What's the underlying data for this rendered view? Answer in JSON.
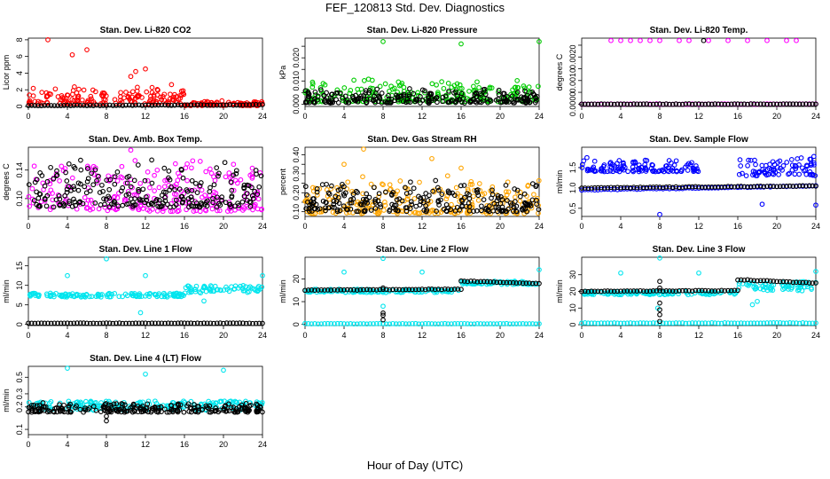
{
  "title": "FEF_120813  Std. Dev. Diagnostics",
  "xlabel": "Hour of Day (UTC)",
  "colors": {
    "black": "#000000",
    "red": "#ff0000",
    "green": "#00cc00",
    "magenta": "#ff00ff",
    "orange": "#ffa500",
    "blue": "#0000ff",
    "cyan": "#00e5ee"
  },
  "chart_data": [
    {
      "type": "scatter",
      "title": "Stan. Dev. Li-820 CO2",
      "ylabel": "Licor ppm",
      "xlim": [
        0,
        24
      ],
      "xticks": [
        0,
        4,
        8,
        12,
        16,
        20,
        24
      ],
      "ylim": [
        0,
        8.2
      ],
      "yticks": [
        0,
        2,
        4,
        6,
        8
      ],
      "ytick_labels": [
        "0",
        "2",
        "4",
        "6",
        "8"
      ],
      "series": [
        {
          "color": "red",
          "pattern": "cloud",
          "segments": [
            {
              "x": [
                0,
                16
              ],
              "y": [
                0.3,
                2.8
              ]
            },
            {
              "x": [
                16,
                24
              ],
              "y": [
                0.1,
                0.7
              ]
            }
          ],
          "outliers": [
            {
              "x": 2,
              "y": 8
            },
            {
              "x": 4.5,
              "y": 6.2
            },
            {
              "x": 6,
              "y": 6.8
            },
            {
              "x": 11,
              "y": 4.2
            },
            {
              "x": 12,
              "y": 4.5
            },
            {
              "x": 10.5,
              "y": 3.6
            }
          ]
        },
        {
          "color": "black",
          "pattern": "line",
          "segments": [
            {
              "x": [
                0,
                24
              ],
              "y": [
                0.1,
                0.2
              ]
            }
          ]
        }
      ]
    },
    {
      "type": "scatter",
      "title": "Stan. Dev. Li-820 Pressure",
      "ylabel": "kPa",
      "xlim": [
        0,
        24
      ],
      "xticks": [
        0,
        4,
        8,
        12,
        16,
        20,
        24
      ],
      "ylim": [
        -0.001,
        0.0285
      ],
      "yticks": [
        0,
        0.005,
        0.01,
        0.015,
        0.02,
        0.025
      ],
      "ytick_labels": [
        "0.000",
        "",
        "0.010",
        "",
        "0.020",
        ""
      ],
      "series": [
        {
          "color": "green",
          "pattern": "cloud",
          "segments": [
            {
              "x": [
                0,
                24
              ],
              "y": [
                0.001,
                0.011
              ]
            }
          ],
          "outliers": [
            {
              "x": 8,
              "y": 0.027
            },
            {
              "x": 16,
              "y": 0.026
            },
            {
              "x": 24,
              "y": 0.027
            }
          ]
        },
        {
          "color": "black",
          "pattern": "cloud",
          "segments": [
            {
              "x": [
                0,
                24
              ],
              "y": [
                0.0005,
                0.007
              ]
            }
          ]
        }
      ]
    },
    {
      "type": "scatter",
      "title": "Stan. Dev. Li-820 Temp.",
      "ylabel": "degrees C",
      "xlim": [
        0,
        24
      ],
      "xticks": [
        0,
        4,
        8,
        12,
        16,
        20,
        24
      ],
      "ylim": [
        -0.0001,
        0.0028
      ],
      "yticks": [
        0,
        0.0005,
        0.001,
        0.0015,
        0.002,
        0.0025
      ],
      "ytick_labels": [
        "0.0000",
        "",
        "0.0010",
        "",
        "0.0020",
        ""
      ],
      "series": [
        {
          "color": "magenta",
          "pattern": "line",
          "segments": [
            {
              "x": [
                0,
                24
              ],
              "y": [
                0,
                0
              ]
            }
          ],
          "outliers": [
            {
              "x": 3,
              "y": 0.0027
            },
            {
              "x": 4,
              "y": 0.0027
            },
            {
              "x": 5,
              "y": 0.0027
            },
            {
              "x": 6,
              "y": 0.0027
            },
            {
              "x": 7,
              "y": 0.0027
            },
            {
              "x": 8,
              "y": 0.0027
            },
            {
              "x": 10,
              "y": 0.0027
            },
            {
              "x": 11,
              "y": 0.0027
            },
            {
              "x": 13,
              "y": 0.0027
            },
            {
              "x": 15,
              "y": 0.0027
            },
            {
              "x": 17,
              "y": 0.0027
            },
            {
              "x": 19,
              "y": 0.0027
            },
            {
              "x": 21,
              "y": 0.0027
            },
            {
              "x": 22,
              "y": 0.0027
            }
          ]
        },
        {
          "color": "black",
          "pattern": "line",
          "segments": [
            {
              "x": [
                0,
                24
              ],
              "y": [
                0,
                0
              ]
            }
          ],
          "outliers": [
            {
              "x": 12.5,
              "y": 0.0027
            }
          ]
        }
      ]
    },
    {
      "type": "scatter",
      "title": "Stan. Dev. Amb. Box Temp.",
      "ylabel": "degrees C",
      "xlim": [
        0,
        24
      ],
      "xticks": [
        0,
        4,
        8,
        12,
        16,
        20,
        24
      ],
      "ylim": [
        0.075,
        0.172
      ],
      "yticks": [
        0.1,
        0.14
      ],
      "ytick_labels": [
        "0.10",
        "0.14"
      ],
      "series": [
        {
          "color": "magenta",
          "pattern": "cloud",
          "segments": [
            {
              "x": [
                0,
                24
              ],
              "y": [
                0.082,
                0.16
              ]
            }
          ],
          "outliers": [
            {
              "x": 10.5,
              "y": 0.168
            }
          ]
        },
        {
          "color": "black",
          "pattern": "cloud",
          "segments": [
            {
              "x": [
                0,
                24
              ],
              "y": [
                0.088,
                0.158
              ]
            }
          ]
        }
      ]
    },
    {
      "type": "scatter",
      "title": "Stan. Dev. Gas Stream RH",
      "ylabel": "percent",
      "xlim": [
        0,
        24
      ],
      "xticks": [
        0,
        4,
        8,
        12,
        16,
        20,
        24
      ],
      "ylim": [
        0.075,
        0.44
      ],
      "yticks": [
        0.1,
        0.15,
        0.2,
        0.25,
        0.3,
        0.35,
        0.4
      ],
      "ytick_labels": [
        "0.10",
        "",
        "0.20",
        "",
        "0.30",
        "",
        "0.40"
      ],
      "series": [
        {
          "color": "orange",
          "pattern": "cloud",
          "segments": [
            {
              "x": [
                0,
                24
              ],
              "y": [
                0.09,
                0.3
              ]
            }
          ],
          "outliers": [
            {
              "x": 4,
              "y": 0.35
            },
            {
              "x": 6,
              "y": 0.43
            },
            {
              "x": 13,
              "y": 0.38
            },
            {
              "x": 16,
              "y": 0.33
            }
          ]
        },
        {
          "color": "black",
          "pattern": "cloud",
          "segments": [
            {
              "x": [
                0,
                24
              ],
              "y": [
                0.1,
                0.28
              ]
            }
          ]
        }
      ]
    },
    {
      "type": "scatter",
      "title": "Stan. Dev. Sample Flow",
      "ylabel": "ml/min",
      "xlim": [
        0,
        24
      ],
      "xticks": [
        0,
        4,
        8,
        12,
        16,
        20,
        24
      ],
      "ylim": [
        0.3,
        2.0
      ],
      "yticks": [
        0.5,
        1.0,
        1.5
      ],
      "ytick_labels": [
        "0.5",
        "1.0",
        "1.5"
      ],
      "series": [
        {
          "color": "blue",
          "pattern": "line",
          "segments": [
            {
              "x": [
                0,
                24
              ],
              "y": [
                0.95,
                1.05
              ]
            }
          ]
        },
        {
          "color": "blue",
          "pattern": "cloud",
          "segments": [
            {
              "x": [
                0,
                12
              ],
              "y": [
                1.4,
                1.75
              ]
            },
            {
              "x": [
                16,
                24
              ],
              "y": [
                1.3,
                1.8
              ]
            }
          ],
          "outliers": [
            {
              "x": 8,
              "y": 0.35
            },
            {
              "x": 18.5,
              "y": 0.6
            },
            {
              "x": 24,
              "y": 0.58
            }
          ]
        },
        {
          "color": "black",
          "pattern": "line",
          "segments": [
            {
              "x": [
                0,
                24
              ],
              "y": [
                1.0,
                1.05
              ]
            }
          ]
        }
      ]
    },
    {
      "type": "scatter",
      "title": "Stan. Dev. Line 1 Flow",
      "ylabel": "ml/min",
      "xlim": [
        0,
        24
      ],
      "xticks": [
        0,
        4,
        8,
        12,
        16,
        20,
        24
      ],
      "ylim": [
        -0.3,
        17.2
      ],
      "yticks": [
        0,
        5,
        10,
        15
      ],
      "ytick_labels": [
        "0",
        "5",
        "10",
        "15"
      ],
      "series": [
        {
          "color": "cyan",
          "pattern": "band",
          "segments": [
            {
              "x": [
                0,
                16
              ],
              "y": [
                7.0,
                8.0
              ]
            },
            {
              "x": [
                16,
                24
              ],
              "y": [
                8.0,
                10.0
              ]
            }
          ],
          "outliers": [
            {
              "x": 4,
              "y": 12.5
            },
            {
              "x": 8,
              "y": 16.8
            },
            {
              "x": 12,
              "y": 12.5
            },
            {
              "x": 24,
              "y": 12.5
            },
            {
              "x": 11.5,
              "y": 3.0
            },
            {
              "x": 18,
              "y": 6.0
            }
          ]
        },
        {
          "color": "black",
          "pattern": "line",
          "segments": [
            {
              "x": [
                0,
                24
              ],
              "y": [
                0.3,
                0.3
              ]
            }
          ]
        }
      ]
    },
    {
      "type": "scatter",
      "title": "Stan. Dev. Line 2 Flow",
      "ylabel": "ml/min",
      "xlim": [
        0,
        24
      ],
      "xticks": [
        0,
        4,
        8,
        12,
        16,
        20,
        24
      ],
      "ylim": [
        -0.5,
        29.5
      ],
      "yticks": [
        0,
        10,
        20
      ],
      "ytick_labels": [
        "0",
        "10",
        "20"
      ],
      "series": [
        {
          "color": "cyan",
          "pattern": "band",
          "segments": [
            {
              "x": [
                0,
                16
              ],
              "y": [
                14.0,
                15.5
              ]
            },
            {
              "x": [
                16,
                24
              ],
              "y": [
                17.5,
                19.0
              ]
            }
          ],
          "outliers": [
            {
              "x": 4,
              "y": 23
            },
            {
              "x": 8,
              "y": 29
            },
            {
              "x": 12,
              "y": 23
            },
            {
              "x": 24,
              "y": 24
            },
            {
              "x": 8,
              "y": 8
            }
          ]
        },
        {
          "color": "cyan",
          "pattern": "line",
          "segments": [
            {
              "x": [
                0,
                24
              ],
              "y": [
                0.3,
                0.3
              ]
            }
          ]
        },
        {
          "color": "black",
          "pattern": "line",
          "segments": [
            {
              "x": [
                0,
                16
              ],
              "y": [
                15.0,
                15.5
              ]
            },
            {
              "x": [
                16,
                24
              ],
              "y": [
                19.0,
                18.0
              ]
            }
          ],
          "outliers": [
            {
              "x": 8,
              "y": 2
            },
            {
              "x": 8,
              "y": 4
            },
            {
              "x": 8,
              "y": 5
            },
            {
              "x": 8,
              "y": 16
            }
          ]
        }
      ]
    },
    {
      "type": "scatter",
      "title": "Stan. Dev. Line 3 Flow",
      "ylabel": "ml/min",
      "xlim": [
        0,
        24
      ],
      "xticks": [
        0,
        4,
        8,
        12,
        16,
        20,
        24
      ],
      "ylim": [
        -0.5,
        40.5
      ],
      "yticks": [
        0,
        10,
        20,
        30
      ],
      "ytick_labels": [
        "0",
        "10",
        "20",
        "30"
      ],
      "series": [
        {
          "color": "cyan",
          "pattern": "band",
          "segments": [
            {
              "x": [
                0,
                16
              ],
              "y": [
                18.0,
                20.0
              ]
            },
            {
              "x": [
                16,
                24
              ],
              "y": [
                20.0,
                26.0
              ]
            }
          ],
          "outliers": [
            {
              "x": 4,
              "y": 31
            },
            {
              "x": 8,
              "y": 40
            },
            {
              "x": 12,
              "y": 31
            },
            {
              "x": 24,
              "y": 32
            },
            {
              "x": 17.5,
              "y": 12
            },
            {
              "x": 18,
              "y": 14
            },
            {
              "x": 7.8,
              "y": 10
            }
          ]
        },
        {
          "color": "cyan",
          "pattern": "line",
          "segments": [
            {
              "x": [
                0,
                24
              ],
              "y": [
                1.0,
                1.0
              ]
            }
          ]
        },
        {
          "color": "black",
          "pattern": "line",
          "segments": [
            {
              "x": [
                0,
                16
              ],
              "y": [
                20.0,
                20.5
              ]
            },
            {
              "x": [
                16,
                24
              ],
              "y": [
                27.0,
                25.0
              ]
            }
          ],
          "outliers": [
            {
              "x": 8,
              "y": 2
            },
            {
              "x": 8,
              "y": 6
            },
            {
              "x": 8,
              "y": 9
            },
            {
              "x": 8,
              "y": 13
            },
            {
              "x": 8,
              "y": 22
            },
            {
              "x": 8,
              "y": 26
            }
          ]
        }
      ]
    },
    {
      "type": "scatter",
      "title": "Stan. Dev. Line 4 (LT) Flow",
      "ylabel": "ml/min",
      "xlim": [
        0,
        24
      ],
      "xticks": [
        0,
        4,
        8,
        12,
        16,
        20,
        24
      ],
      "ylim": [
        0.085,
        0.7
      ],
      "yticks": [
        0.1,
        0.2,
        0.3,
        0.5
      ],
      "ytick_labels": [
        "0.1",
        "0.2",
        "0.3",
        "0.5"
      ],
      "scale": "log",
      "series": [
        {
          "color": "cyan",
          "pattern": "band",
          "segments": [
            {
              "x": [
                0,
                24
              ],
              "y": [
                0.18,
                0.24
              ]
            }
          ],
          "outliers": [
            {
              "x": 4,
              "y": 0.66
            },
            {
              "x": 12,
              "y": 0.55
            },
            {
              "x": 20,
              "y": 0.62
            }
          ]
        },
        {
          "color": "black",
          "pattern": "cloud",
          "segments": [
            {
              "x": [
                0,
                24
              ],
              "y": [
                0.17,
                0.23
              ]
            }
          ],
          "outliers": [
            {
              "x": 8,
              "y": 0.13
            },
            {
              "x": 8,
              "y": 0.15
            }
          ]
        }
      ]
    }
  ]
}
